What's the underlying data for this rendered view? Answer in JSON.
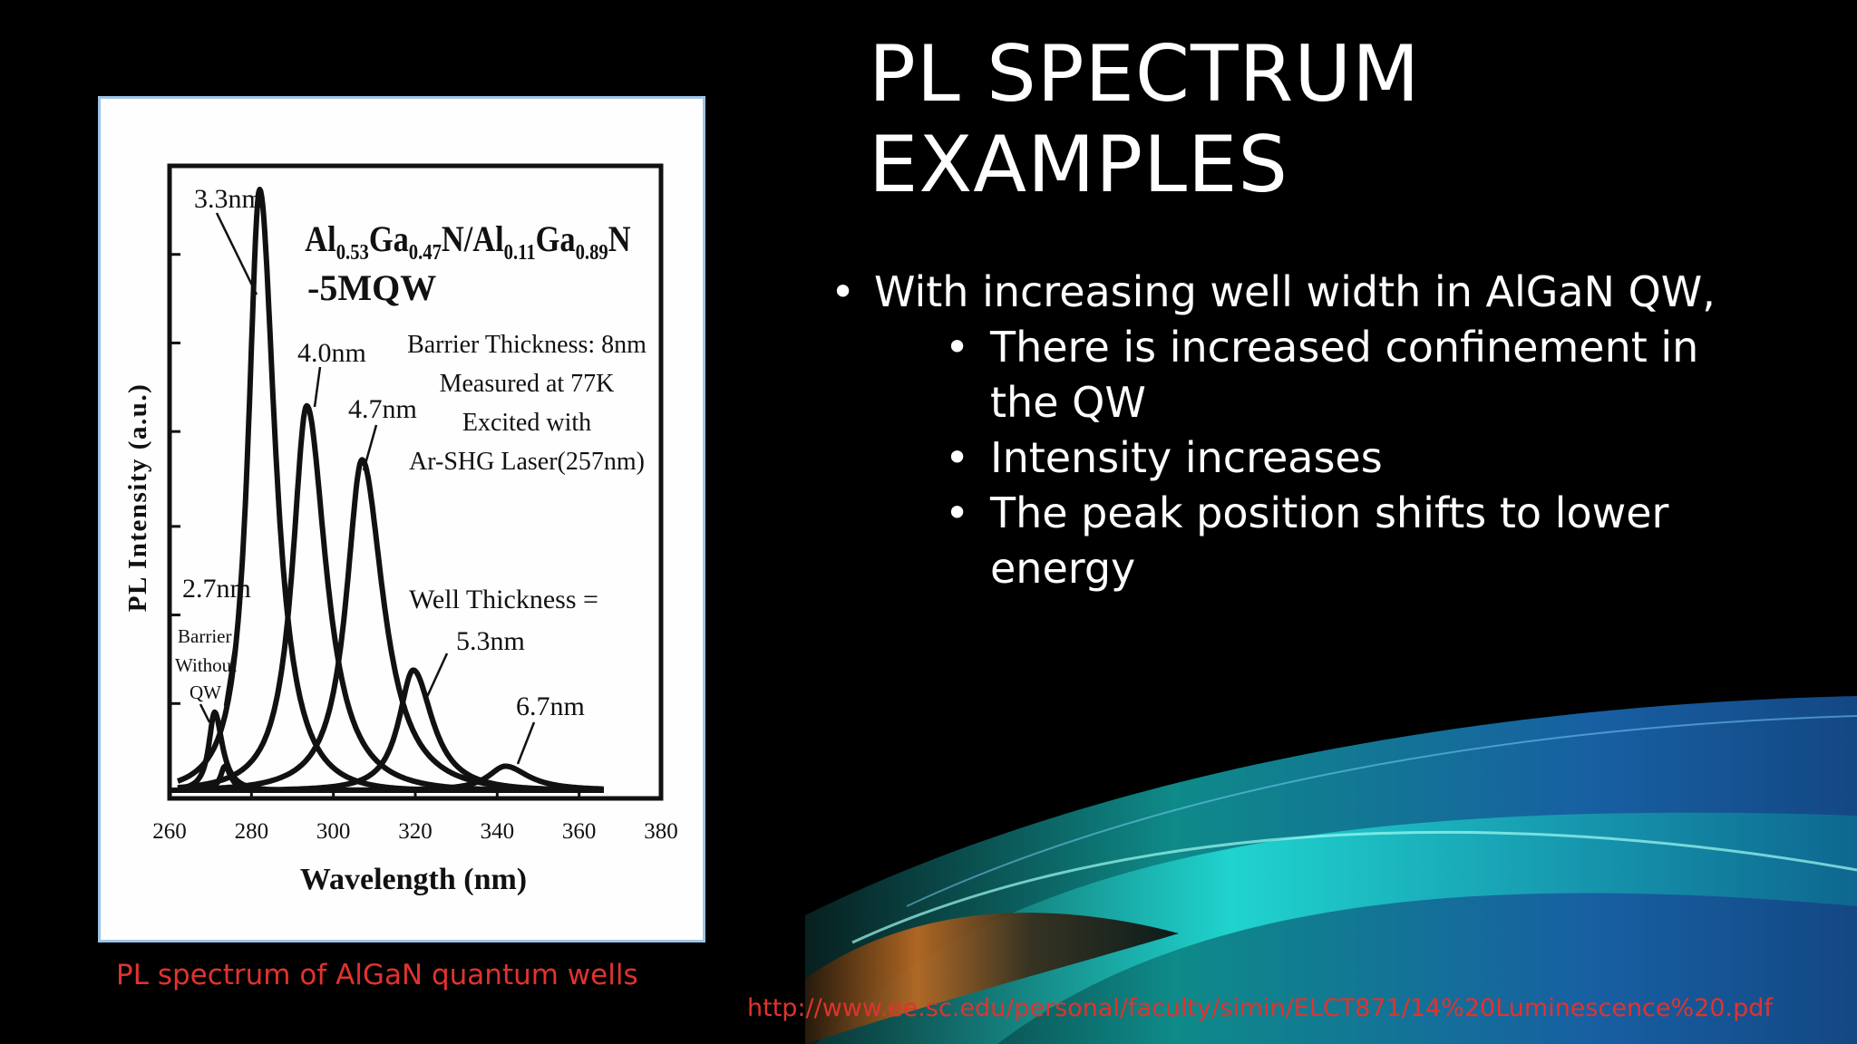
{
  "slide": {
    "title_lines": [
      "PL SPECTRUM",
      "EXAMPLES"
    ],
    "bullet_1": "With increasing well width in AlGaN QW,",
    "sub_bullets": [
      "There is increased confinement in the QW",
      "Intensity increases",
      "The peak  position shifts to lower energy"
    ],
    "caption": "PL spectrum of AlGaN quantum wells",
    "source_url": "http://www.ee.sc.edu/personal/faculty/simin/ELCT871/14%20Luminescence%20.pdf"
  },
  "colors": {
    "background": "#000000",
    "text": "#ffffff",
    "caption": "#e0332e",
    "frame_border": "#9ec3e6",
    "wave_teal": "#19c9c8",
    "wave_blue": "#1f7fd8"
  },
  "chart_data": {
    "type": "line",
    "xlabel": "Wavelength (nm)",
    "ylabel": "PL Intensity (a.u.)",
    "xlim": [
      260,
      380
    ],
    "ylim": [
      0,
      100
    ],
    "x_ticks": [
      "260",
      "280",
      "300",
      "320",
      "340",
      "360",
      "380"
    ],
    "composition": {
      "line1_parts": [
        "Al",
        "0.53",
        "Ga",
        "0.47",
        "N/Al",
        "0.11",
        "Ga",
        "0.89",
        "N"
      ],
      "line2": "-5MQW"
    },
    "conditions": [
      "Barrier Thickness: 8nm",
      "Measured at 77K",
      "Excited with",
      "Ar-SHG Laser(257nm)"
    ],
    "well_thickness_label": "Well Thickness =",
    "series": [
      {
        "name": "Barrier Without QW",
        "peak_nm": 271,
        "fwhm_nm": 4.0,
        "peak_intensity": 13
      },
      {
        "name": "2.7nm",
        "peak_nm": 273.5,
        "fwhm_nm": 3.0,
        "peak_intensity": 4
      },
      {
        "name": "3.3nm",
        "peak_nm": 282,
        "fwhm_nm": 8.0,
        "peak_intensity": 100
      },
      {
        "name": "4.0nm",
        "peak_nm": 293.5,
        "fwhm_nm": 10.0,
        "peak_intensity": 64
      },
      {
        "name": "4.7nm",
        "peak_nm": 307,
        "fwhm_nm": 11.0,
        "peak_intensity": 55
      },
      {
        "name": "5.3nm",
        "peak_nm": 319.5,
        "fwhm_nm": 10.0,
        "peak_intensity": 20
      },
      {
        "name": "6.7nm",
        "peak_nm": 342,
        "fwhm_nm": 12.0,
        "peak_intensity": 4
      }
    ],
    "labels": {
      "barrier": [
        "Barrier",
        "Without",
        "QW"
      ],
      "w27": "2.7nm",
      "w33": "3.3nm",
      "w40": "4.0nm",
      "w47": "4.7nm",
      "w53": "5.3nm",
      "w67": "6.7nm"
    },
    "grid": false,
    "legend": "none"
  }
}
